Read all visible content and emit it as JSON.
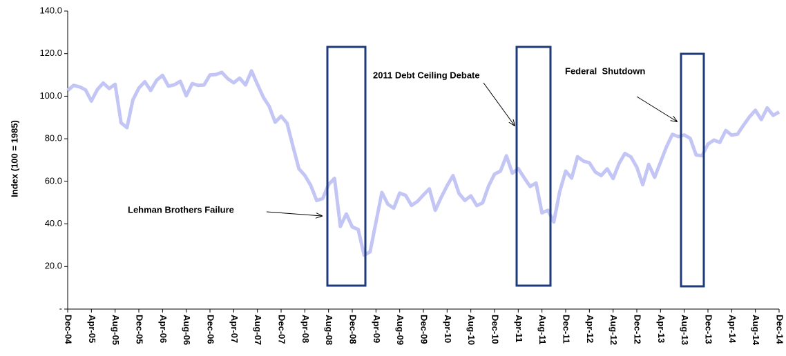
{
  "chart_data": {
    "type": "line",
    "y_label": "Index (100 = 1985)",
    "annotations": [
      "Lehman Brothers Failure",
      "2011 Debt Ceiling Debate",
      "Federal  Shutdown"
    ],
    "categories": [
      "Dec-04",
      null,
      null,
      null,
      "Apr-05",
      null,
      null,
      null,
      "Aug-05",
      null,
      null,
      null,
      "Dec-05",
      null,
      null,
      null,
      "Apr-06",
      null,
      null,
      null,
      "Aug-06",
      null,
      null,
      null,
      "Dec-06",
      null,
      null,
      null,
      "Apr-07",
      null,
      null,
      null,
      "Aug-07",
      null,
      null,
      null,
      "Dec-07",
      null,
      null,
      null,
      "Apr-08",
      null,
      null,
      null,
      "Aug-08",
      null,
      null,
      null,
      "Dec-08",
      null,
      null,
      null,
      "Apr-09",
      null,
      null,
      null,
      "Aug-09",
      null,
      null,
      null,
      "Dec-09",
      null,
      null,
      null,
      "Apr-10",
      null,
      null,
      null,
      "Aug-10",
      null,
      null,
      null,
      "Dec-10",
      null,
      null,
      null,
      "Apr-11",
      null,
      null,
      null,
      "Aug-11",
      null,
      null,
      null,
      "Dec-11",
      null,
      null,
      null,
      "Apr-12",
      null,
      null,
      null,
      "Aug-12",
      null,
      null,
      null,
      "Dec-12",
      null,
      null,
      null,
      "Apr-13",
      null,
      null,
      null,
      "Aug-13",
      null,
      null,
      null,
      "Dec-13",
      null,
      null,
      null,
      "Apr-14",
      null,
      null,
      null,
      "Aug-14",
      null,
      null,
      null,
      "Dec-14"
    ],
    "values": [
      102.7,
      105.1,
      104.4,
      103.0,
      97.7,
      103.1,
      106.2,
      103.6,
      105.6,
      87.5,
      85.2,
      98.3,
      103.8,
      106.8,
      102.7,
      107.5,
      109.8,
      104.7,
      105.4,
      107.0,
      100.2,
      105.9,
      105.1,
      105.3,
      110.0,
      110.2,
      111.2,
      108.2,
      106.3,
      108.5,
      105.3,
      111.9,
      105.6,
      99.5,
      95.2,
      87.8,
      90.6,
      87.3,
      76.4,
      65.9,
      62.8,
      58.1,
      51.0,
      51.9,
      58.5,
      61.4,
      38.8,
      44.7,
      38.6,
      37.4,
      25.3,
      26.9,
      40.8,
      54.8,
      49.3,
      47.4,
      54.5,
      53.4,
      48.7,
      50.6,
      53.6,
      56.5,
      46.4,
      52.5,
      57.9,
      62.7,
      54.3,
      51.0,
      53.2,
      48.6,
      49.9,
      57.8,
      63.4,
      64.8,
      72.0,
      63.8,
      66.0,
      61.7,
      57.6,
      59.2,
      45.2,
      46.4,
      40.9,
      55.2,
      64.8,
      61.5,
      71.6,
      69.5,
      68.7,
      64.4,
      62.7,
      65.9,
      61.3,
      68.4,
      73.1,
      71.5,
      66.7,
      58.4,
      68.0,
      61.9,
      69.0,
      76.2,
      82.1,
      81.0,
      81.8,
      80.2,
      72.4,
      72.0,
      77.5,
      79.4,
      78.3,
      83.9,
      81.7,
      82.2,
      86.4,
      90.3,
      93.4,
      89.0,
      94.5,
      91.0,
      92.6
    ],
    "color": "#c3c6f5",
    "ylim": [
      0,
      140
    ],
    "yticks": [
      {
        "value": 0,
        "label": "-"
      },
      {
        "value": 20,
        "label": "20.0"
      },
      {
        "value": 40,
        "label": "40.0"
      },
      {
        "value": 60,
        "label": "60.0"
      },
      {
        "value": 80,
        "label": "80.0"
      },
      {
        "value": 100,
        "label": "100.0"
      },
      {
        "value": 120,
        "label": "120.0"
      },
      {
        "value": 140,
        "label": "140.0"
      }
    ]
  }
}
